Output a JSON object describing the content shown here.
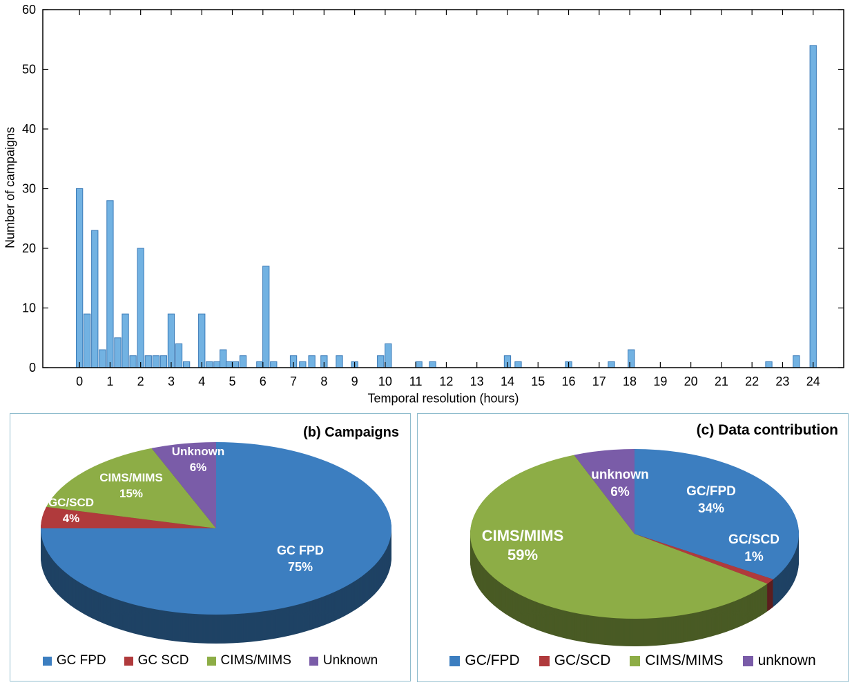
{
  "chart_data": [
    {
      "type": "bar",
      "title": "",
      "xlabel": "Temporal resolution (hours)",
      "ylabel": "Number of campaigns",
      "xlim": [
        -1.2,
        25.0
      ],
      "ylim": [
        0,
        60
      ],
      "grid": false,
      "xticks": [
        0,
        1,
        2,
        3,
        4,
        5,
        6,
        7,
        8,
        9,
        10,
        11,
        12,
        13,
        14,
        15,
        16,
        17,
        18,
        19,
        20,
        21,
        22,
        23,
        24
      ],
      "yticks": [
        0,
        10,
        20,
        30,
        40,
        50,
        60
      ],
      "bar_color": "#72b2e2",
      "bar_edge": "#3a7ab8",
      "bin_width": 0.21,
      "x": [
        0,
        0.25,
        0.5,
        0.75,
        1.0,
        1.25,
        1.5,
        1.75,
        2.0,
        2.25,
        2.5,
        2.75,
        3.0,
        3.25,
        3.5,
        4.0,
        4.25,
        4.5,
        4.7,
        4.9,
        5.1,
        5.35,
        5.9,
        6.1,
        6.35,
        7.0,
        7.3,
        7.6,
        8.0,
        8.5,
        9.0,
        9.85,
        10.1,
        11.1,
        11.55,
        14.0,
        14.35,
        16.0,
        17.4,
        18.05,
        22.55,
        23.45,
        24.0
      ],
      "values": [
        30,
        9,
        23,
        3,
        28,
        5,
        9,
        2,
        20,
        2,
        2,
        2,
        9,
        4,
        1,
        9,
        1,
        1,
        3,
        1,
        1,
        2,
        1,
        17,
        1,
        2,
        1,
        2,
        2,
        2,
        1,
        2,
        4,
        1,
        1,
        2,
        1,
        1,
        1,
        3,
        1,
        2,
        54
      ]
    },
    {
      "type": "pie",
      "title": "(b) Campaigns",
      "legend_position": "bottom",
      "start_angle_deg": 0,
      "direction": "clockwise",
      "slices": [
        {
          "label": "GC FPD",
          "legend": "GC FPD",
          "value": 75,
          "color": "#3c7ec0"
        },
        {
          "label": "GC/SCD",
          "legend": "GC SCD",
          "value": 4,
          "color": "#b03a3c"
        },
        {
          "label": "CIMS/MIMS",
          "legend": "CIMS/MIMS",
          "value": 15,
          "color": "#8dad46"
        },
        {
          "label": "Unknown",
          "legend": "Unknown",
          "value": 6,
          "color": "#7a5ca8"
        }
      ]
    },
    {
      "type": "pie",
      "title": "(c) Data contribution",
      "legend_position": "bottom",
      "start_angle_deg": 0,
      "direction": "clockwise",
      "slices": [
        {
          "label": "GC/FPD",
          "legend": "GC/FPD",
          "value": 34,
          "color": "#3c7ec0"
        },
        {
          "label": "GC/SCD",
          "legend": "GC/SCD",
          "value": 1,
          "color": "#b03a3c"
        },
        {
          "label": "CIMS/MIMS",
          "legend": "CIMS/MIMS",
          "value": 59,
          "color": "#8dad46"
        },
        {
          "label": "unknown",
          "legend": "unknown",
          "value": 6,
          "color": "#7a5ca8"
        }
      ]
    }
  ]
}
